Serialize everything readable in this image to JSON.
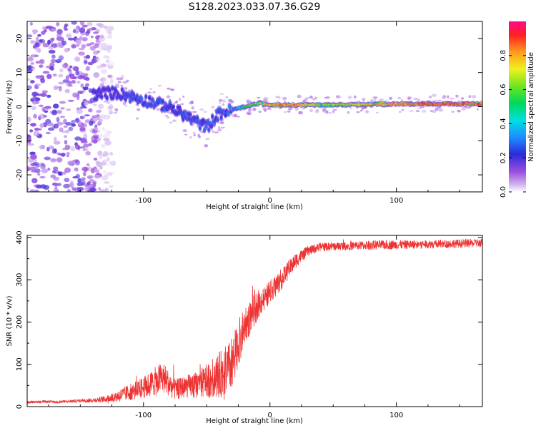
{
  "title": "S128.2023.033.07.36.G29",
  "chart_data": [
    {
      "type": "heatmap",
      "xlabel": "Height of straight line (km)",
      "ylabel": "Frequency (Hz)",
      "xlim": [
        -192,
        168
      ],
      "ylim": [
        -25,
        25
      ],
      "xticks": [
        -100,
        0,
        100
      ],
      "yticks": [
        -20,
        -10,
        0,
        10,
        20
      ],
      "grid": false,
      "colorbar": {
        "label": "Normalized spectral amplitude",
        "ticks": [
          "0.0",
          "0.2",
          "0.4",
          "0.6",
          "0.8"
        ],
        "tick_values": [
          0.0,
          0.2,
          0.4,
          0.6,
          0.8
        ],
        "range": [
          0,
          1
        ]
      },
      "ridge": {
        "x": [
          -140,
          -130,
          -120,
          -110,
          -100,
          -90,
          -80,
          -70,
          -60,
          -50,
          -40,
          -30,
          -20,
          -10,
          0,
          20,
          40,
          60,
          80,
          100,
          120,
          140,
          168
        ],
        "y": [
          3.5,
          4,
          4,
          3,
          2,
          1,
          0,
          -2,
          -4,
          -6,
          -2,
          -1,
          0,
          1,
          0.5,
          0.5,
          0.5,
          0.6,
          0.7,
          0.8,
          0.8,
          0.8,
          0.8
        ],
        "amplitude": [
          0.1,
          0.15,
          0.25,
          0.3,
          0.3,
          0.3,
          0.3,
          0.3,
          0.3,
          0.3,
          0.3,
          0.4,
          0.6,
          0.7,
          0.85,
          0.9,
          0.7,
          0.7,
          0.85,
          0.9,
          0.95,
          0.95,
          0.95
        ]
      }
    },
    {
      "type": "line",
      "xlabel": "Height of straight line (km)",
      "ylabel": "SNR (10 * v/v)",
      "xlim": [
        -192,
        168
      ],
      "ylim": [
        0,
        405
      ],
      "xticks": [
        -100,
        0,
        100
      ],
      "yticks": [
        0,
        100,
        200,
        300,
        400
      ],
      "grid": false,
      "color": "#ee3333",
      "series": [
        {
          "x": [
            -192,
            -180,
            -170,
            -160,
            -150,
            -140,
            -130,
            -120,
            -110,
            -100,
            -90,
            -85,
            -80,
            -75,
            -70,
            -60,
            -50,
            -40,
            -35,
            -30,
            -25,
            -20,
            -15,
            -10,
            -5,
            0,
            10,
            20,
            30,
            40,
            60,
            80,
            100,
            120,
            140,
            168
          ],
          "y": [
            10,
            12,
            11,
            12,
            14,
            15,
            18,
            25,
            35,
            45,
            60,
            70,
            55,
            40,
            45,
            50,
            60,
            75,
            85,
            100,
            150,
            190,
            215,
            240,
            255,
            270,
            305,
            345,
            368,
            378,
            380,
            382,
            383,
            384,
            385,
            387
          ],
          "noise": [
            3,
            3,
            3,
            3,
            4,
            5,
            8,
            15,
            20,
            25,
            35,
            40,
            30,
            25,
            25,
            30,
            40,
            55,
            60,
            60,
            55,
            45,
            40,
            35,
            30,
            28,
            25,
            18,
            12,
            10,
            10,
            11,
            11,
            10,
            10,
            10
          ]
        }
      ]
    }
  ]
}
